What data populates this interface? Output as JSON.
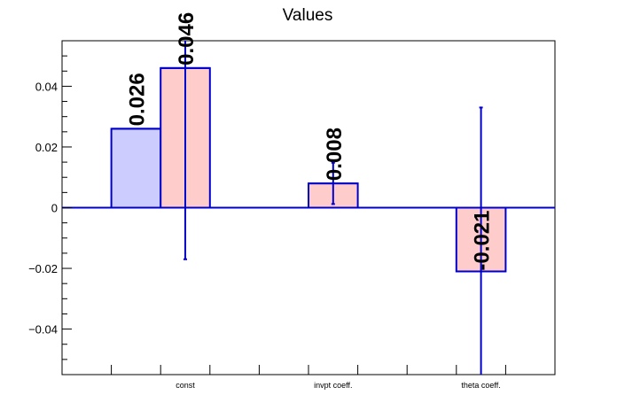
{
  "chart_data": {
    "type": "bar",
    "title": "Values",
    "categories": [
      "const",
      "invpt coeff.",
      "theta coeff."
    ],
    "series": [
      {
        "values": [
          0.026,
          null,
          null
        ],
        "errors": [
          null,
          null,
          null
        ],
        "labels": [
          "0.026",
          "",
          ""
        ],
        "fill": "#ccccff",
        "stroke": "#0000cc"
      },
      {
        "values": [
          0.046,
          0.008,
          -0.021
        ],
        "errors": [
          0.063,
          0.0068,
          0.054
        ],
        "labels": [
          "0.046",
          "0.008",
          "-0.021"
        ],
        "fill": "#ffcccc",
        "stroke": "#0000cc"
      }
    ],
    "ylim": [
      -0.055,
      0.055
    ],
    "yticks": [
      -0.04,
      -0.02,
      0,
      0.02,
      0.04
    ],
    "ytick_labels": [
      "−0.04",
      "−0.02",
      "0",
      "0.02",
      "0.04"
    ],
    "xlabel": "",
    "ylabel": "",
    "grid": false,
    "legend": "none",
    "colors": {
      "axis": "#000000",
      "zero_line": "#0000cc"
    }
  }
}
